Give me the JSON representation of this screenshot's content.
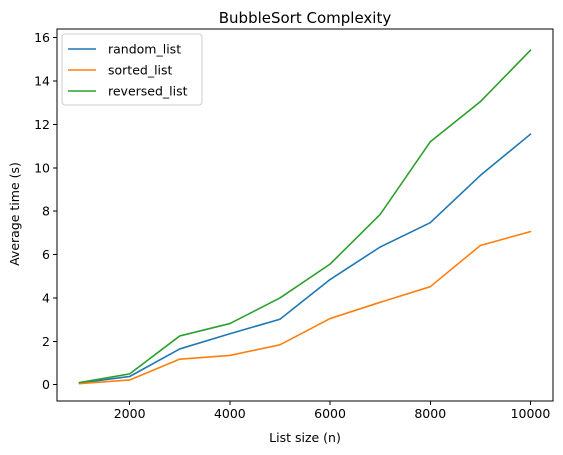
{
  "chart_data": {
    "type": "line",
    "title": "BubbleSort Complexity",
    "xlabel": "List size (n)",
    "ylabel": "Average time (s)",
    "x": [
      1000,
      2000,
      3000,
      4000,
      5000,
      6000,
      7000,
      8000,
      9000,
      10000
    ],
    "xlim": [
      550,
      10450
    ],
    "ylim": [
      -0.75,
      16.4
    ],
    "xticks": [
      2000,
      4000,
      6000,
      8000,
      10000
    ],
    "yticks": [
      0,
      2,
      4,
      6,
      8,
      10,
      12,
      14,
      16
    ],
    "grid": false,
    "legend_position": "top-left",
    "series": [
      {
        "name": "random_list",
        "color": "#1f77b4",
        "values": [
          0.08,
          0.38,
          1.65,
          2.35,
          3.02,
          4.85,
          6.35,
          7.47,
          9.65,
          11.55
        ]
      },
      {
        "name": "sorted_list",
        "color": "#ff7f0e",
        "values": [
          0.05,
          0.22,
          1.18,
          1.35,
          1.84,
          3.05,
          3.8,
          4.52,
          6.42,
          7.06
        ]
      },
      {
        "name": "reversed_list",
        "color": "#2ca02c",
        "values": [
          0.1,
          0.5,
          2.25,
          2.82,
          4.0,
          5.56,
          7.85,
          11.2,
          13.05,
          15.42
        ]
      }
    ]
  }
}
